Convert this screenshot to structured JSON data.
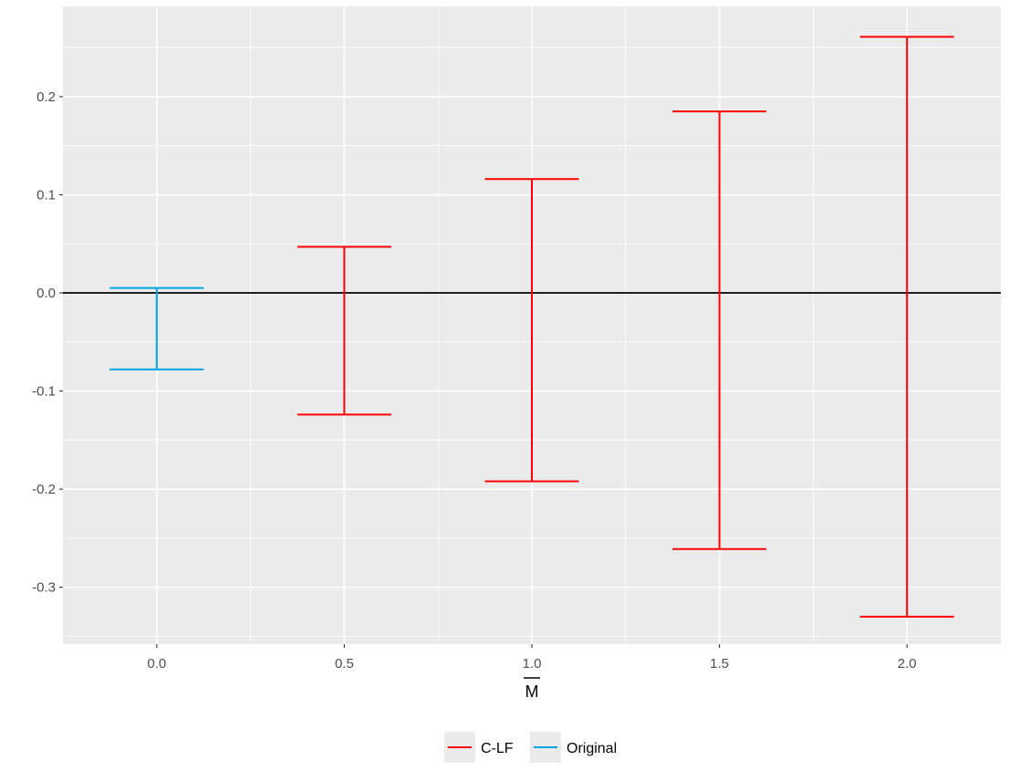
{
  "chart_data": {
    "type": "errorbar",
    "xlabel": "M",
    "xlabel_overline": true,
    "ylabel": "",
    "x_ticks": [
      0.0,
      0.5,
      1.0,
      1.5,
      2.0
    ],
    "x_tick_labels": [
      "0.0",
      "0.5",
      "1.0",
      "1.5",
      "2.0"
    ],
    "y_ticks": [
      -0.3,
      -0.2,
      -0.1,
      0.0,
      0.1,
      0.2
    ],
    "y_tick_labels": [
      "-0.3",
      "-0.2",
      "-0.1",
      "0.0",
      "0.1",
      "0.2"
    ],
    "xlim": [
      -0.25,
      2.25
    ],
    "ylim": [
      -0.358,
      0.292
    ],
    "reference_line_y": 0.0,
    "grid": true,
    "legend_position": "bottom",
    "series": [
      {
        "name": "C-LF",
        "color": "#ff0000",
        "points": [
          {
            "x": 0.5,
            "ymin": -0.124,
            "ymax": 0.047
          },
          {
            "x": 1.0,
            "ymin": -0.192,
            "ymax": 0.116
          },
          {
            "x": 1.5,
            "ymin": -0.261,
            "ymax": 0.185
          },
          {
            "x": 2.0,
            "ymin": -0.33,
            "ymax": 0.261
          }
        ]
      },
      {
        "name": "Original",
        "color": "#00a5e0",
        "points": [
          {
            "x": 0.0,
            "ymin": -0.078,
            "ymax": 0.005
          }
        ]
      }
    ]
  }
}
